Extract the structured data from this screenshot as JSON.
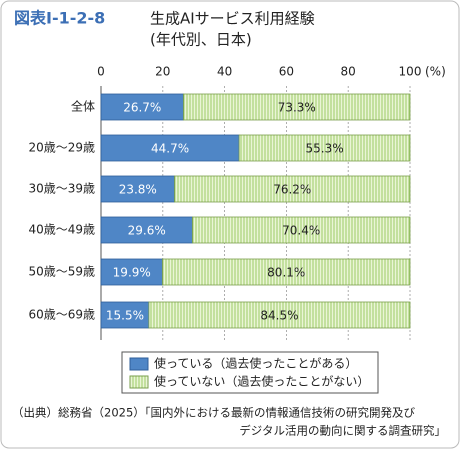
{
  "chart_data": {
    "type": "stacked-bar-horizontal",
    "figure_label": "図表Ⅰ-1-2-8",
    "title": "生成AIサービス利用経験",
    "subtitle": "(年代別、日本)",
    "x_unit": "(%)",
    "categories": [
      "全体",
      "20歳～29歳",
      "30歳～39歳",
      "40歳～49歳",
      "50歳～59歳",
      "60歳～69歳"
    ],
    "series": [
      {
        "name": "使っている（過去使ったことがある）",
        "color": "#4f86c6",
        "values": [
          26.7,
          44.7,
          23.8,
          29.6,
          19.9,
          15.5
        ],
        "value_labels": [
          "26.7%",
          "44.7%",
          "23.8%",
          "29.6%",
          "19.9%",
          "15.5%"
        ]
      },
      {
        "name": "使っていない（過去使ったことがない）",
        "color": "#9ccc65",
        "values": [
          73.3,
          55.3,
          76.2,
          70.4,
          80.1,
          84.5
        ],
        "value_labels": [
          "73.3%",
          "55.3%",
          "76.2%",
          "70.4%",
          "80.1%",
          "84.5%"
        ]
      }
    ],
    "xlim": [
      0,
      100
    ],
    "xticks": [
      0,
      20,
      40,
      60,
      80,
      100
    ],
    "grid": true,
    "source": [
      "（出典）総務省（2025）「国内外における最新の情報通信技術の研究開発及び",
      "デジタル活用の動向に関する調査研究」"
    ]
  }
}
